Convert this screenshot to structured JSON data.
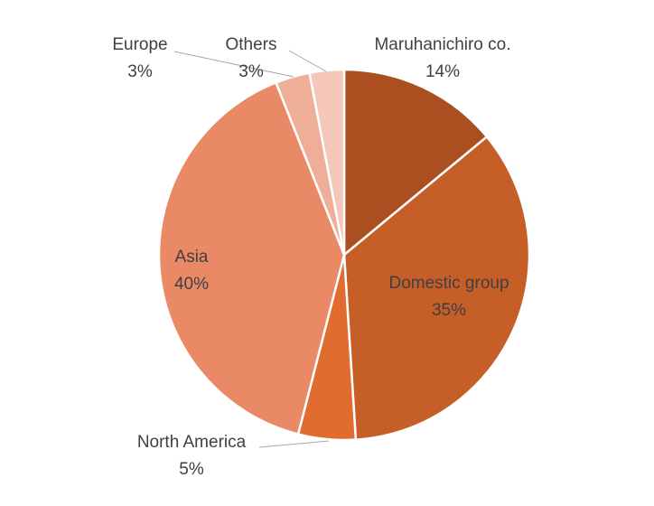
{
  "chart_data": {
    "type": "pie",
    "title": "",
    "start_angle_deg": 0,
    "direction": "clockwise",
    "slices": [
      {
        "name": "Maruhanichiro co.",
        "value": 14,
        "label_value": "14%",
        "color": "#AB4F21"
      },
      {
        "name": "Domestic group",
        "value": 35,
        "label_value": "35%",
        "color": "#C65E28"
      },
      {
        "name": "North America",
        "value": 5,
        "label_value": "5%",
        "color": "#E06C30"
      },
      {
        "name": "Asia",
        "value": 40,
        "label_value": "40%",
        "color": "#E98965"
      },
      {
        "name": "Europe",
        "value": 3,
        "label_value": "3%",
        "color": "#EFAE98"
      },
      {
        "name": "Others",
        "value": 3,
        "label_value": "3%",
        "color": "#F5C6BA"
      }
    ],
    "legend": "none",
    "data_labels": "category name and percentage"
  }
}
